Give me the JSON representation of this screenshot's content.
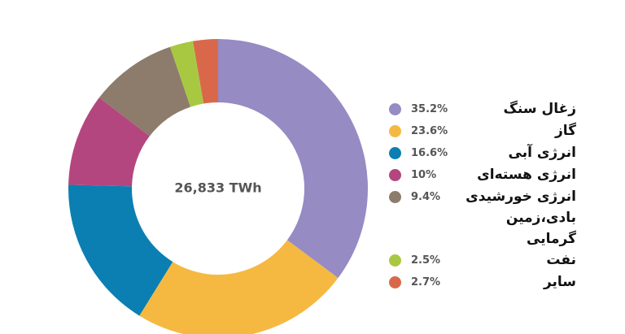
{
  "chart_data": {
    "type": "donut",
    "center_label": "26,833 TWh",
    "categories": [
      "زغال سنگ",
      "گاز",
      "انرژی آبی",
      "انرژی هسته‌ای",
      "انرژی خورشیدی\nبادی،زمین گرمایی",
      "نفت",
      "سایر"
    ],
    "values": [
      35.2,
      23.6,
      16.6,
      10,
      9.4,
      2.5,
      2.7
    ],
    "value_labels": [
      "35.2%",
      "23.6%",
      "16.6%",
      "10%",
      "9.4%",
      "2.5%",
      "2.7%"
    ],
    "colors": [
      "#968bc3",
      "#f5b942",
      "#0b7fb2",
      "#b4467f",
      "#8d7c6b",
      "#a9c842",
      "#d9684b"
    ]
  }
}
